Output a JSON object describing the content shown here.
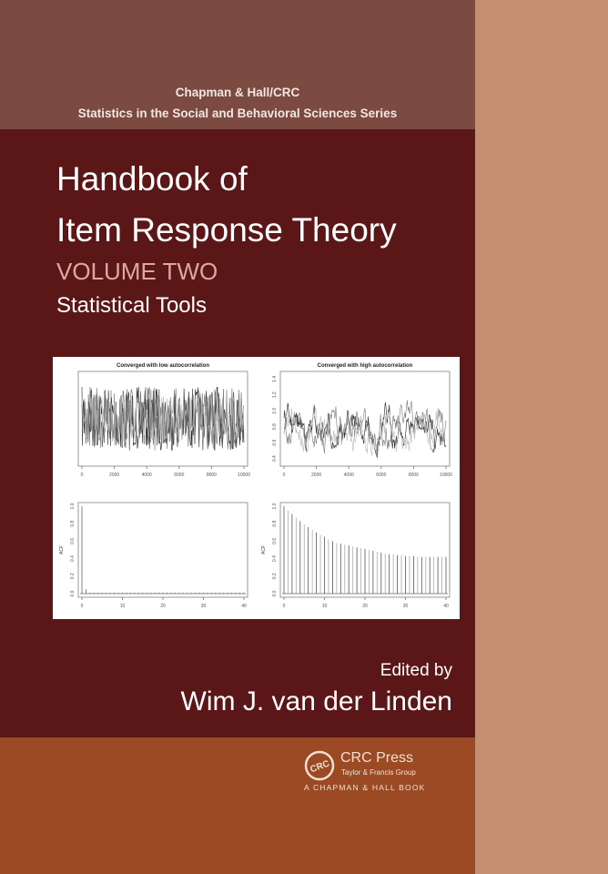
{
  "cover": {
    "series_line1": "Chapman & Hall/CRC",
    "series_line2": "Statistics in the Social and Behavioral Sciences Series",
    "title_line1": "Handbook of",
    "title_line2": "Item Response Theory",
    "volume": "VOLUME TWO",
    "subtitle": "Statistical Tools",
    "edited_by": "Edited by",
    "editor": "Wim J. van der Linden",
    "publisher": "CRC Press",
    "publisher_group": "Taylor & Francis Group",
    "imprint": "A CHAPMAN & HALL BOOK",
    "logo_text": "CRC",
    "colors": {
      "top_band": "#7b4a40",
      "main": "#5b1717",
      "bottom_band": "#9b4a24",
      "spine_strip": "#c38f70",
      "volume_text": "#dca99c"
    }
  },
  "chart_data": [
    {
      "type": "line",
      "title": "Converged with low autocorrelation",
      "xticks": [
        "0",
        "2000",
        "4000",
        "6000",
        "8000",
        "10000"
      ],
      "xlim": [
        0,
        10000
      ],
      "grid": false
    },
    {
      "type": "line",
      "title": "Converged with high autocorrelation",
      "xticks": [
        "0",
        "2000",
        "4000",
        "6000",
        "8000",
        "10000"
      ],
      "yticks": [
        "0.4",
        "0.6",
        "0.8",
        "1.0",
        "1.2",
        "1.4"
      ],
      "ylim": [
        0.35,
        1.45
      ],
      "grid": false
    },
    {
      "type": "bar",
      "ylabel": "ACF",
      "xticks": [
        "0",
        "10",
        "20",
        "30",
        "40"
      ],
      "yticks": [
        "0.0",
        "0.2",
        "0.4",
        "0.6",
        "0.8",
        "1.0"
      ],
      "ylim": [
        0,
        1
      ],
      "lags": [
        0,
        1,
        2,
        3,
        4,
        5,
        6,
        7,
        8,
        9,
        10,
        11,
        12,
        13,
        14,
        15,
        16,
        17,
        18,
        19,
        20,
        21,
        22,
        23,
        24,
        25,
        26,
        27,
        28,
        29,
        30,
        31,
        32,
        33,
        34,
        35,
        36,
        37,
        38,
        39,
        40
      ],
      "values": [
        1.0,
        0.05,
        0.01,
        0.01,
        0.01,
        0.01,
        0.01,
        0.01,
        0.01,
        0.01,
        0.01,
        0.01,
        0.01,
        0.01,
        0.01,
        0.01,
        0.01,
        0.01,
        0.01,
        0.01,
        0.01,
        0.01,
        0.01,
        0.01,
        0.01,
        0.01,
        0.01,
        0.01,
        0.01,
        0.01,
        0.01,
        0.01,
        0.01,
        0.01,
        0.01,
        0.01,
        0.01,
        0.01,
        0.01,
        0.01,
        0.01
      ]
    },
    {
      "type": "bar",
      "ylabel": "ACF",
      "xticks": [
        "0",
        "10",
        "20",
        "30",
        "40"
      ],
      "yticks": [
        "0.0",
        "0.2",
        "0.4",
        "0.6",
        "0.8",
        "1.0"
      ],
      "ylim": [
        0,
        1
      ],
      "lags": [
        0,
        1,
        2,
        3,
        4,
        5,
        6,
        7,
        8,
        9,
        10,
        11,
        12,
        13,
        14,
        15,
        16,
        17,
        18,
        19,
        20,
        21,
        22,
        23,
        24,
        25,
        26,
        27,
        28,
        29,
        30,
        31,
        32,
        33,
        34,
        35,
        36,
        37,
        38,
        39,
        40
      ],
      "values": [
        1.0,
        0.95,
        0.91,
        0.87,
        0.83,
        0.79,
        0.76,
        0.73,
        0.7,
        0.67,
        0.65,
        0.62,
        0.6,
        0.58,
        0.57,
        0.56,
        0.55,
        0.54,
        0.53,
        0.52,
        0.51,
        0.5,
        0.49,
        0.48,
        0.47,
        0.46,
        0.45,
        0.45,
        0.44,
        0.44,
        0.43,
        0.43,
        0.43,
        0.42,
        0.42,
        0.42,
        0.42,
        0.42,
        0.42,
        0.42,
        0.42
      ]
    }
  ]
}
